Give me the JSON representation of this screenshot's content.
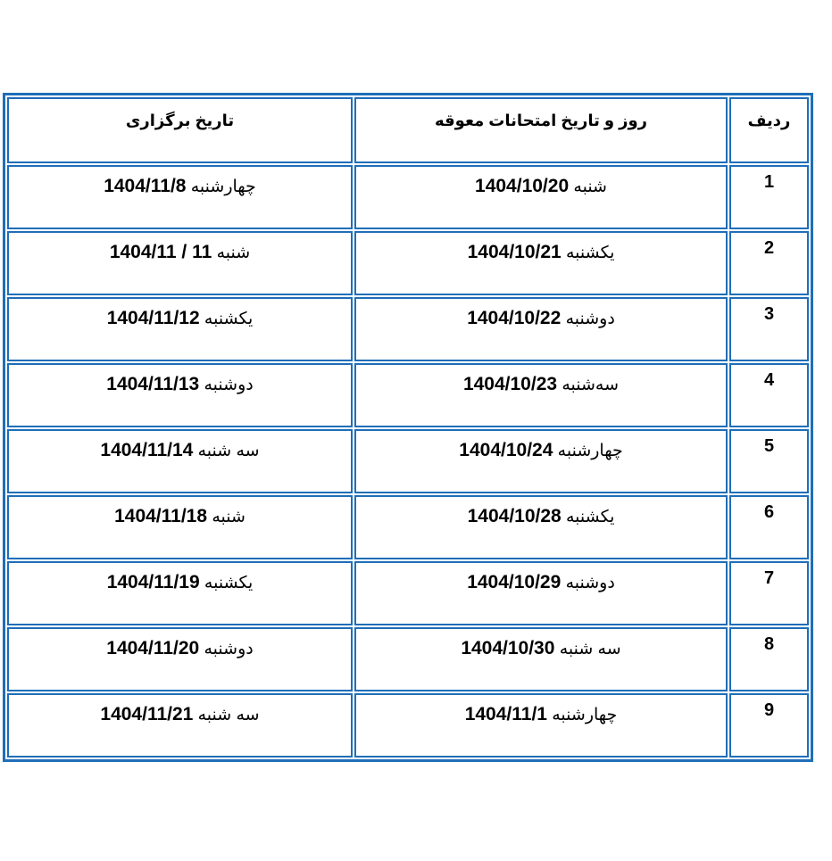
{
  "headers": {
    "row": "ردیف",
    "original": "روز و تاریخ امتحانات معوقه",
    "new": "تاریخ برگزاری"
  },
  "accent_color": "#1f6eb8",
  "rows": [
    {
      "num": "1",
      "orig_day": "شنبه",
      "orig_date": "1404/10/20",
      "new_day": "چهارشنبه",
      "new_date": "1404/11/8"
    },
    {
      "num": "2",
      "orig_day": "یکشنبه",
      "orig_date": "1404/10/21",
      "new_day": "شنبه",
      "new_date": "1404/11 / 11"
    },
    {
      "num": "3",
      "orig_day": "دوشنبه",
      "orig_date": "1404/10/22",
      "new_day": "یکشنبه",
      "new_date": "1404/11/12"
    },
    {
      "num": "4",
      "orig_day": "سه‌شنبه",
      "orig_date": "1404/10/23",
      "new_day": "دوشنبه",
      "new_date": "1404/11/13"
    },
    {
      "num": "5",
      "orig_day": "چهارشنبه",
      "orig_date": "1404/10/24",
      "new_day": "سه شنبه",
      "new_date": "1404/11/14"
    },
    {
      "num": "6",
      "orig_day": "یکشنبه",
      "orig_date": "1404/10/28",
      "new_day": "شنبه",
      "new_date": "1404/11/18"
    },
    {
      "num": "7",
      "orig_day": "دوشنبه",
      "orig_date": "1404/10/29",
      "new_day": "یکشنبه",
      "new_date": "1404/11/19"
    },
    {
      "num": "8",
      "orig_day": "سه شنبه",
      "orig_date": "1404/10/30",
      "new_day": "دوشنبه",
      "new_date": "1404/11/20"
    },
    {
      "num": "9",
      "orig_day": "چهارشنبه",
      "orig_date": "1404/11/1",
      "new_day": "سه شنبه",
      "new_date": "1404/11/21"
    }
  ]
}
